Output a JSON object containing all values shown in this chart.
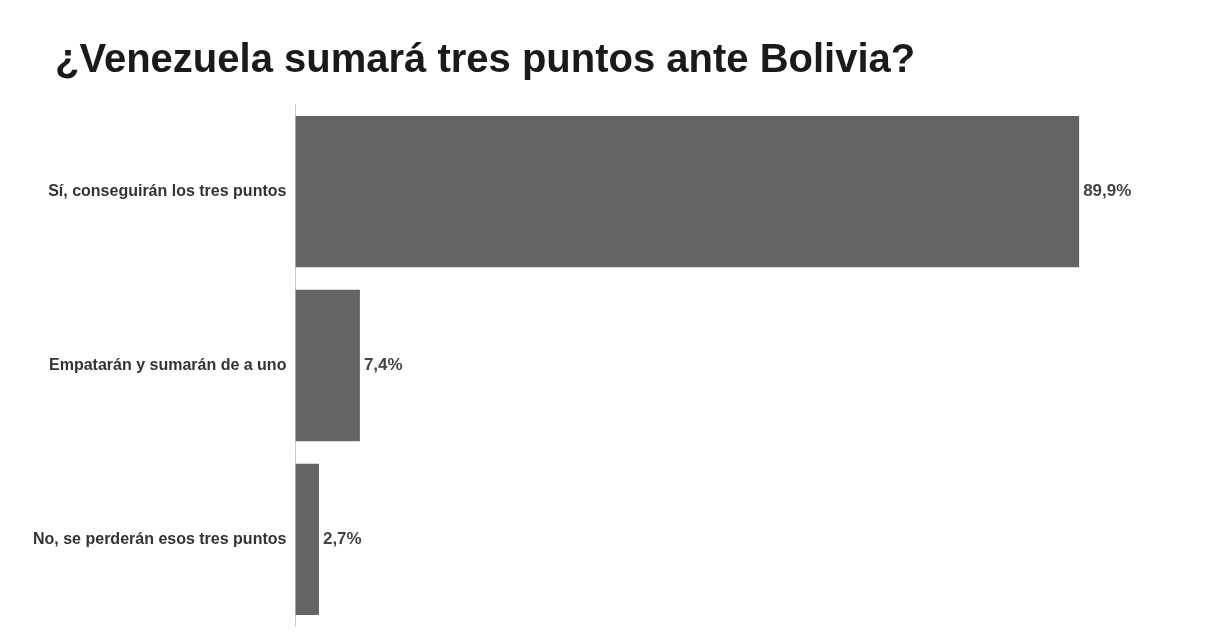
{
  "chart_data": {
    "type": "bar",
    "orientation": "horizontal",
    "title": "¿Venezuela sumará tres puntos ante Bolivia?",
    "categories": [
      "Sí, conseguirán los tres puntos",
      "Empatarán y sumarán de a uno",
      "No, se perderán esos tres puntos"
    ],
    "values": [
      89.9,
      7.4,
      2.7
    ],
    "value_labels": [
      "89,9%",
      "7,4%",
      "2,7%"
    ],
    "color": "#646464",
    "grid": false,
    "legend": false,
    "tick_labels": "y"
  }
}
